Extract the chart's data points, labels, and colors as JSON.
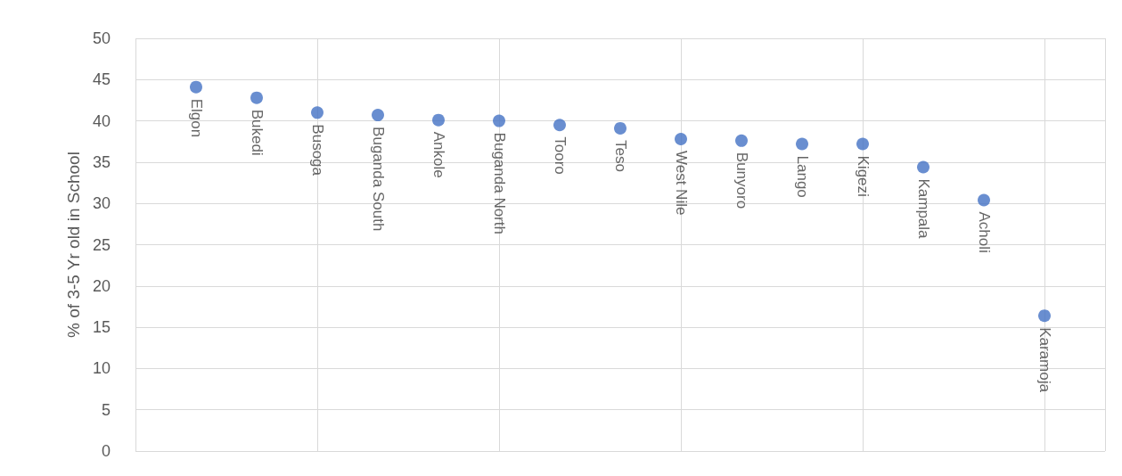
{
  "chart_data": {
    "type": "scatter",
    "ylabel": "% of 3-5 Yr old in School",
    "categories": [
      null,
      null,
      null,
      null,
      null,
      null,
      null,
      null,
      null,
      null,
      null,
      null,
      null,
      null,
      null
    ],
    "values": [
      44.1,
      42.8,
      41.0,
      40.7,
      40.1,
      40.0,
      39.5,
      39.1,
      37.8,
      37.6,
      37.2,
      37.2,
      34.4,
      30.4,
      16.4
    ],
    "value_labels": [
      "Elgon",
      "Bukedi",
      "Busoga",
      "Buganda South",
      "Ankole",
      "Buganda North",
      "Tooro",
      "Teso",
      "West Nile",
      "Bunyoro",
      "Lango",
      "Kigezi",
      "Kampala",
      "Acholi",
      "Karamoja"
    ],
    "color": "#4472c4",
    "marker": "circle",
    "grid": true,
    "tick_labels": "y",
    "ylim": [
      0,
      50
    ],
    "yticks": [
      0,
      5,
      10,
      15,
      20,
      25,
      30,
      35,
      40,
      45,
      50
    ]
  }
}
